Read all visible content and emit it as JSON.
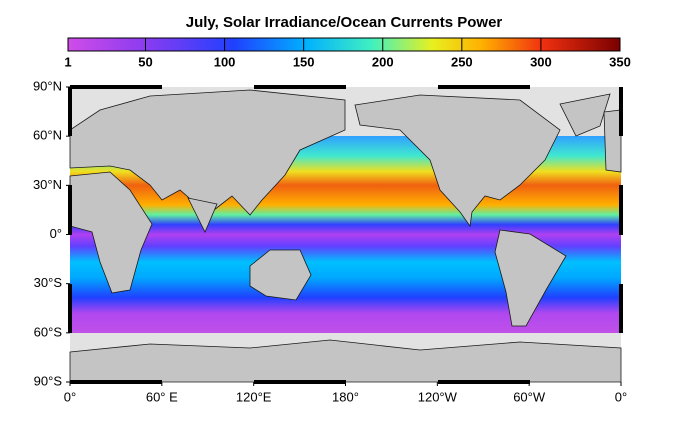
{
  "title": "July, Solar Irradiance/Ocean Currents Power",
  "colorbar": {
    "lim": [
      1,
      350
    ],
    "ticks": [
      1,
      50,
      100,
      150,
      200,
      250,
      300,
      350
    ]
  },
  "map": {
    "lat_lim": [
      -90,
      90
    ],
    "lat_ticks": [
      {
        "value": 90,
        "label": "90°N"
      },
      {
        "value": 60,
        "label": "60°N"
      },
      {
        "value": 30,
        "label": "30°N"
      },
      {
        "value": 0,
        "label": "0°"
      },
      {
        "value": -30,
        "label": "30°S"
      },
      {
        "value": -60,
        "label": "60°S"
      },
      {
        "value": -90,
        "label": "90°S"
      }
    ],
    "lon_lim": [
      0,
      360
    ],
    "lon_ticks": [
      {
        "value": 0,
        "label": "0°"
      },
      {
        "value": 60,
        "label": "60° E"
      },
      {
        "value": 120,
        "label": "120°E"
      },
      {
        "value": 180,
        "label": "180°"
      },
      {
        "value": 240,
        "label": "120°W"
      },
      {
        "value": 300,
        "label": "60°W"
      },
      {
        "value": 360,
        "label": "0°"
      }
    ]
  }
}
